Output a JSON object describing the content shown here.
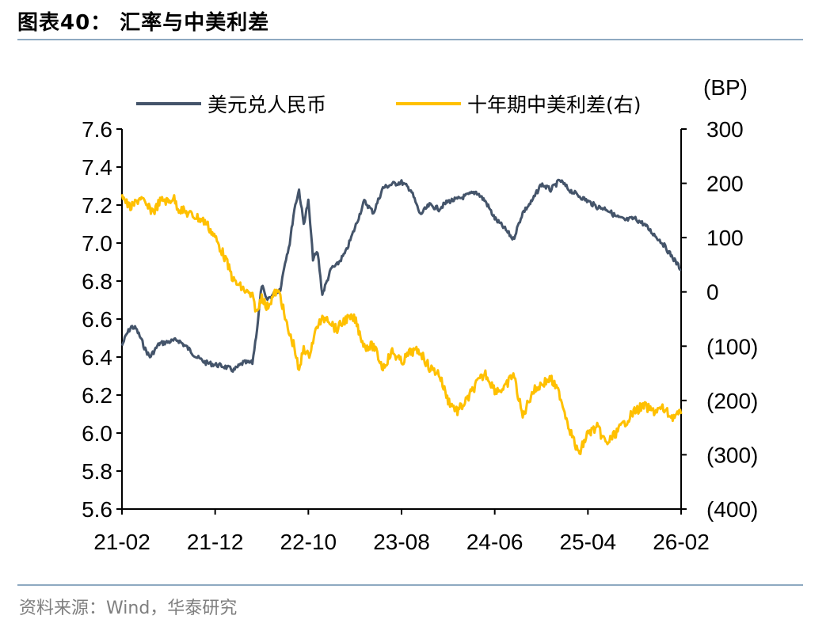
{
  "header": {
    "title": "图表40：  汇率与中美利差"
  },
  "footer": {
    "source": "资料来源：Wind，华泰研究"
  },
  "colors": {
    "usdcny": "#44546a",
    "spread": "#ffc000",
    "rule": "#8ea9c1",
    "axis": "#000000"
  },
  "chart_data": {
    "type": "line",
    "title": "汇率与中美利差",
    "x_ticks": [
      "21-02",
      "21-12",
      "22-10",
      "23-08",
      "24-06",
      "25-04",
      "26-02"
    ],
    "x_range": [
      "2021-02",
      "2026-02"
    ],
    "y_left": {
      "ticks": [
        "7.6",
        "7.4",
        "7.2",
        "7.0",
        "6.8",
        "6.6",
        "6.4",
        "6.2",
        "6.0",
        "5.8",
        "5.6"
      ],
      "range": [
        5.6,
        7.6
      ]
    },
    "y_right": {
      "unit": "(BP)",
      "ticks": [
        "300",
        "200",
        "100",
        "0",
        "(100)",
        "(200)",
        "(300)",
        "(400)"
      ],
      "range": [
        -400,
        300
      ]
    },
    "legend": [
      "美元兑人民币",
      "十年期中美利差(右)"
    ],
    "series": [
      {
        "name": "美元兑人民币",
        "axis": "left",
        "x": [
          0,
          0.5,
          1,
          1.5,
          2,
          2.5,
          3,
          4,
          5,
          6,
          7,
          8,
          9,
          10,
          11,
          12,
          13,
          14,
          14.5,
          15,
          15.5,
          16,
          16.5,
          17,
          17.5,
          18,
          18.5,
          19,
          19.5,
          20,
          20.5,
          21,
          21.5,
          22,
          22.5,
          23,
          24,
          25,
          26,
          27,
          28,
          29,
          30,
          31,
          32,
          33,
          34,
          35,
          36,
          37,
          38,
          39,
          40,
          41,
          42,
          43,
          44,
          45,
          46,
          47,
          48,
          49,
          50,
          51,
          52,
          53,
          54,
          55,
          56,
          57,
          58,
          59,
          60
        ],
        "values": [
          6.46,
          6.52,
          6.56,
          6.55,
          6.5,
          6.44,
          6.4,
          6.47,
          6.48,
          6.49,
          6.45,
          6.4,
          6.37,
          6.36,
          6.35,
          6.33,
          6.37,
          6.37,
          6.55,
          6.78,
          6.7,
          6.72,
          6.74,
          6.76,
          6.9,
          7.0,
          7.18,
          7.28,
          7.1,
          7.22,
          6.92,
          6.95,
          6.73,
          6.8,
          6.87,
          6.88,
          6.95,
          7.08,
          7.22,
          7.16,
          7.29,
          7.31,
          7.32,
          7.28,
          7.15,
          7.2,
          7.18,
          7.22,
          7.23,
          7.25,
          7.27,
          7.22,
          7.13,
          7.08,
          7.02,
          7.16,
          7.22,
          7.31,
          7.28,
          7.33,
          7.28,
          7.25,
          7.22,
          7.19,
          7.18,
          7.14,
          7.12,
          7.13,
          7.1,
          7.05,
          7.0,
          6.93,
          6.86
        ]
      },
      {
        "name": "十年期中美利差(右)",
        "axis": "right",
        "x": [
          0,
          0.3,
          0.6,
          1,
          1.5,
          2,
          2.5,
          3,
          3.5,
          4,
          4.5,
          5,
          5.5,
          6,
          7,
          8,
          9,
          10,
          11,
          12,
          13,
          14,
          14.5,
          15,
          15.5,
          16,
          16.5,
          17,
          17.5,
          18,
          18.5,
          19,
          19.5,
          20,
          21,
          22,
          23,
          24,
          25,
          26,
          27,
          28,
          29,
          30,
          31,
          32,
          33,
          34,
          35,
          36,
          37,
          38,
          39,
          40,
          41,
          42,
          43,
          44,
          45,
          46,
          47,
          48,
          49,
          50,
          51,
          52,
          53,
          54,
          55,
          56,
          57,
          58,
          59,
          60
        ],
        "values": [
          180,
          170,
          160,
          155,
          165,
          175,
          160,
          152,
          150,
          165,
          170,
          165,
          175,
          155,
          145,
          138,
          128,
          100,
          65,
          20,
          5,
          -10,
          -40,
          -5,
          -30,
          -15,
          0,
          -5,
          -50,
          -80,
          -100,
          -150,
          -100,
          -120,
          -60,
          -45,
          -70,
          -50,
          -50,
          -100,
          -100,
          -140,
          -110,
          -130,
          -110,
          -110,
          -140,
          -150,
          -200,
          -220,
          -200,
          -170,
          -150,
          -180,
          -180,
          -150,
          -230,
          -185,
          -170,
          -160,
          -190,
          -250,
          -300,
          -260,
          -250,
          -280,
          -260,
          -240,
          -220,
          -210,
          -220,
          -215,
          -230,
          -225
        ]
      }
    ]
  }
}
